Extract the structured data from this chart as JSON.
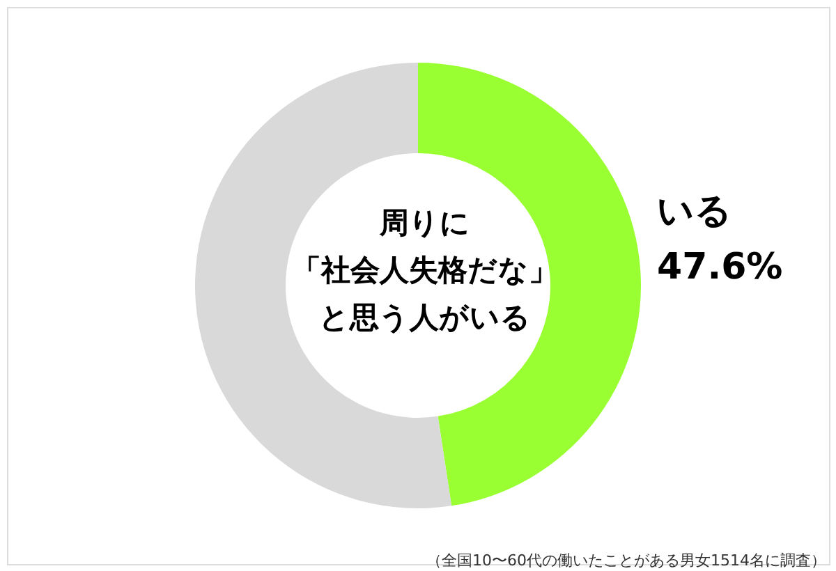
{
  "chart_data": {
    "type": "donut",
    "title": "周りに「社会人失格だな」と思う人がいる",
    "categories": [
      "いる",
      null
    ],
    "values": [
      47.6,
      52.4
    ],
    "colors": [
      "#99ff33",
      "#d9d9d9"
    ],
    "value_labels": [
      "47.6%",
      null
    ],
    "legend": false,
    "annotations": [
      "（全国10〜60代の働いたことがある男女1514名に調査）"
    ]
  }
}
